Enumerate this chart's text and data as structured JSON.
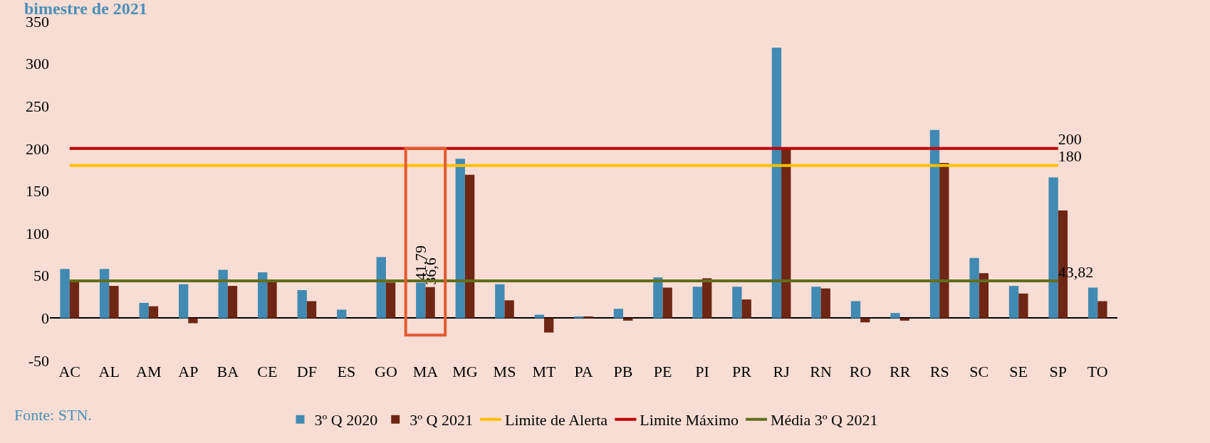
{
  "chart_data": {
    "type": "bar",
    "title": "bimestre de 2021",
    "categories": [
      "AC",
      "AL",
      "AM",
      "AP",
      "BA",
      "CE",
      "DF",
      "ES",
      "GO",
      "MA",
      "MG",
      "MS",
      "MT",
      "PA",
      "PB",
      "PE",
      "PI",
      "PR",
      "RJ",
      "RN",
      "RO",
      "RR",
      "RS",
      "SC",
      "SE",
      "SP",
      "TO"
    ],
    "series": [
      {
        "name": "3º Q 2020",
        "color": "#418ab3",
        "values": [
          58,
          58,
          18,
          40,
          57,
          54,
          33,
          10,
          72,
          41.79,
          188,
          40,
          4,
          2,
          11,
          48,
          37,
          37,
          319,
          37,
          20,
          6,
          222,
          71,
          38,
          166,
          36
        ],
        "value_labels": [
          null,
          null,
          null,
          null,
          null,
          null,
          null,
          null,
          null,
          "41,79",
          null,
          null,
          null,
          null,
          null,
          null,
          null,
          null,
          null,
          null,
          null,
          null,
          null,
          null,
          null,
          null,
          null
        ]
      },
      {
        "name": "3º Q 2021",
        "color": "#6e2714",
        "values": [
          44,
          38,
          14,
          -6,
          38,
          43,
          20,
          0,
          42,
          36.6,
          169,
          21,
          -17,
          2,
          -3,
          36,
          47,
          22,
          199,
          35,
          -5,
          -3,
          183,
          53,
          29,
          127,
          20
        ],
        "value_labels": [
          null,
          null,
          null,
          null,
          null,
          null,
          null,
          null,
          null,
          "36,6",
          null,
          null,
          null,
          null,
          null,
          null,
          null,
          null,
          null,
          null,
          null,
          null,
          null,
          null,
          null,
          null,
          null
        ]
      },
      {
        "name": "Limite de Alerta",
        "type": "line",
        "color": "#ffc000",
        "values": [
          180,
          180,
          180,
          180,
          180,
          180,
          180,
          180,
          180,
          180,
          180,
          180,
          180,
          180,
          180,
          180,
          180,
          180,
          180,
          180,
          180,
          180,
          180,
          180,
          180,
          180,
          null
        ],
        "value_labels": [
          null,
          null,
          null,
          null,
          null,
          null,
          null,
          null,
          null,
          null,
          null,
          null,
          null,
          null,
          null,
          null,
          null,
          null,
          null,
          null,
          null,
          null,
          null,
          null,
          null,
          "180",
          null
        ]
      },
      {
        "name": "Limite Máximo",
        "type": "line",
        "color": "#c00000",
        "values": [
          200,
          200,
          200,
          200,
          200,
          200,
          200,
          200,
          200,
          200,
          200,
          200,
          200,
          200,
          200,
          200,
          200,
          200,
          200,
          200,
          200,
          200,
          200,
          200,
          200,
          200,
          null
        ],
        "value_labels": [
          null,
          null,
          null,
          null,
          null,
          null,
          null,
          null,
          null,
          null,
          null,
          null,
          null,
          null,
          null,
          null,
          null,
          null,
          null,
          null,
          null,
          null,
          null,
          null,
          null,
          "200",
          null
        ]
      },
      {
        "name": "Média 3º Q 2021",
        "type": "line",
        "color": "#636e1c",
        "values": [
          43.82,
          43.82,
          43.82,
          43.82,
          43.82,
          43.82,
          43.82,
          43.82,
          43.82,
          43.82,
          43.82,
          43.82,
          43.82,
          43.82,
          43.82,
          43.82,
          43.82,
          43.82,
          43.82,
          43.82,
          43.82,
          43.82,
          43.82,
          43.82,
          43.82,
          43.82,
          null
        ],
        "value_labels": [
          null,
          null,
          null,
          null,
          null,
          null,
          null,
          null,
          null,
          null,
          null,
          null,
          null,
          null,
          null,
          null,
          null,
          null,
          null,
          null,
          null,
          null,
          null,
          null,
          null,
          "43,82",
          null
        ]
      }
    ],
    "ylim": [
      -50,
      350
    ],
    "yticks": [
      -50,
      0,
      50,
      100,
      150,
      200,
      250,
      300,
      350
    ],
    "legend": "bottom",
    "annotations": [
      "Fonte: STN."
    ]
  }
}
